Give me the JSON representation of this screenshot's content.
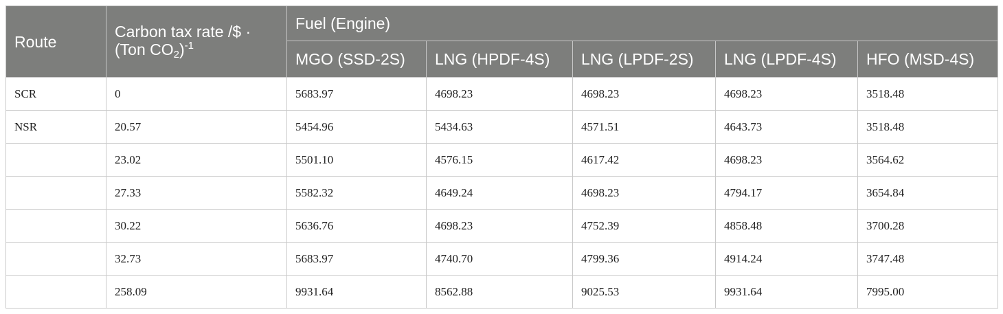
{
  "table": {
    "headers": {
      "route": "Route",
      "tax_line1": "Carbon tax rate /$ ·",
      "tax_line2_prefix": "(Ton CO",
      "tax_sub": "2",
      "tax_paren": ")",
      "tax_sup": "-1",
      "fuel_group": "Fuel (Engine)",
      "engines": [
        "MGO (SSD-2S)",
        "LNG (HPDF-4S)",
        "LNG (LPDF-2S)",
        "LNG (LPDF-4S)",
        "HFO (MSD-4S)"
      ]
    },
    "rows": [
      {
        "route": "SCR",
        "tax": "0",
        "values": [
          "5683.97",
          "4698.23",
          "4698.23",
          "4698.23",
          "3518.48"
        ]
      },
      {
        "route": "NSR",
        "tax": "20.57",
        "values": [
          "5454.96",
          "5434.63",
          "4571.51",
          "4643.73",
          "3518.48"
        ]
      },
      {
        "route": "",
        "tax": "23.02",
        "values": [
          "5501.10",
          "4576.15",
          "4617.42",
          "4698.23",
          "3564.62"
        ]
      },
      {
        "route": "",
        "tax": "27.33",
        "values": [
          "5582.32",
          "4649.24",
          "4698.23",
          "4794.17",
          "3654.84"
        ]
      },
      {
        "route": "",
        "tax": "30.22",
        "values": [
          "5636.76",
          "4698.23",
          "4752.39",
          "4858.48",
          "3700.28"
        ]
      },
      {
        "route": "",
        "tax": "32.73",
        "values": [
          "5683.97",
          "4740.70",
          "4799.36",
          "4914.24",
          "3747.48"
        ]
      },
      {
        "route": "",
        "tax": "258.09",
        "values": [
          "9931.64",
          "8562.88",
          "9025.53",
          "9931.64",
          "7995.00"
        ]
      }
    ]
  }
}
